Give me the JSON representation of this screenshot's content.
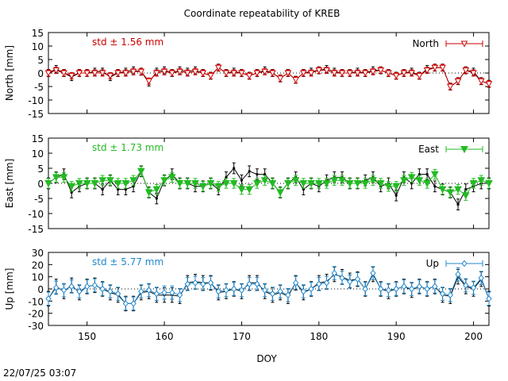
{
  "page": {
    "title": "Coordinate repeatability of KREB",
    "timestamp": "22/07/25 03:07",
    "xlabel": "DOY"
  },
  "chart_data": [
    {
      "type": "line",
      "panel": "North",
      "ylabel": "North [mm]",
      "legend": "North",
      "legend_position": "top-right",
      "std_label": "std ± 1.56 mm",
      "color": "#cc0000",
      "marker": "open-triangle-down",
      "xlim": [
        145,
        202
      ],
      "ylim": [
        -15,
        15
      ],
      "yticks": [
        -15,
        -10,
        -5,
        0,
        5,
        10,
        15
      ],
      "x": [
        145,
        146,
        147,
        148,
        149,
        150,
        151,
        152,
        153,
        154,
        155,
        156,
        157,
        158,
        159,
        160,
        161,
        162,
        163,
        164,
        165,
        166,
        167,
        168,
        169,
        170,
        171,
        172,
        173,
        174,
        175,
        176,
        177,
        178,
        179,
        180,
        181,
        182,
        183,
        184,
        185,
        186,
        187,
        188,
        189,
        190,
        191,
        192,
        193,
        194,
        195,
        196,
        197,
        198,
        199,
        200,
        201,
        202
      ],
      "series": [
        {
          "values": [
            0,
            1.5,
            0,
            -1.5,
            0,
            0,
            0.5,
            0.5,
            -1.5,
            0,
            0.5,
            1,
            0.5,
            -3.5,
            0.5,
            1,
            0,
            1,
            0.5,
            1,
            0,
            -1,
            2,
            0,
            0.5,
            0,
            -1,
            0,
            1,
            0,
            -2,
            0,
            -2.5,
            0,
            0.5,
            1,
            1.5,
            0.5,
            0,
            0,
            0.5,
            0,
            1,
            1,
            0,
            -1,
            0,
            0.5,
            -1,
            1.5,
            2,
            2,
            -5,
            -3,
            1,
            0.5,
            -3,
            -4
          ]
        },
        {
          "values": [
            0,
            1,
            0,
            -1,
            0,
            0,
            0,
            0,
            -1,
            0,
            0,
            0.5,
            0.5,
            -3,
            0,
            0.5,
            0,
            0.5,
            0,
            0.5,
            0,
            -1,
            2,
            0,
            0,
            0,
            -1,
            0,
            0.5,
            0,
            -2,
            0,
            -2.5,
            0,
            0,
            1,
            1,
            0,
            0,
            0,
            0,
            0,
            0.5,
            1,
            0,
            -1,
            0,
            0,
            -1,
            1,
            2,
            2,
            -5,
            -3,
            1,
            0,
            -3,
            -4
          ]
        }
      ],
      "error": 1.3
    },
    {
      "type": "line",
      "panel": "East",
      "ylabel": "East [mm]",
      "legend": "East",
      "legend_position": "top-right",
      "std_label": "std ± 1.73 mm",
      "color": "#22bb22",
      "marker": "filled-triangle-down",
      "xlim": [
        145,
        202
      ],
      "ylim": [
        -15,
        15
      ],
      "yticks": [
        -15,
        -10,
        -5,
        0,
        5,
        10,
        15
      ],
      "x": [
        145,
        146,
        147,
        148,
        149,
        150,
        151,
        152,
        153,
        154,
        155,
        156,
        157,
        158,
        159,
        160,
        161,
        162,
        163,
        164,
        165,
        166,
        167,
        168,
        169,
        170,
        171,
        172,
        173,
        174,
        175,
        176,
        177,
        178,
        179,
        180,
        181,
        182,
        183,
        184,
        185,
        186,
        187,
        188,
        189,
        190,
        191,
        192,
        193,
        194,
        195,
        196,
        197,
        198,
        199,
        200,
        201,
        202
      ],
      "series": [
        {
          "values": [
            0,
            2,
            3,
            -3,
            -1,
            0,
            0,
            -2,
            1,
            -2,
            -2,
            -1,
            4,
            -3,
            -5,
            1,
            3,
            0,
            0,
            -1,
            -1,
            0,
            -2,
            2,
            5,
            1,
            4,
            3,
            3,
            0,
            -3,
            0,
            2,
            -2,
            0,
            -1,
            1,
            2,
            2,
            0,
            0,
            1,
            2,
            -1,
            0,
            -4,
            2,
            0,
            3,
            3,
            -1,
            -2,
            -3,
            -7,
            -2,
            -1,
            0,
            0
          ]
        },
        {
          "values": [
            0,
            2,
            2,
            -1,
            0,
            0,
            0,
            1,
            1,
            0,
            0,
            1,
            4,
            -3,
            -2,
            1,
            2,
            0,
            0,
            0,
            -1,
            0,
            -1,
            0,
            0,
            -2,
            -2,
            0,
            1,
            0,
            -3,
            0,
            1,
            0,
            0,
            0,
            0,
            1,
            1,
            0,
            0,
            0,
            1,
            0,
            -1,
            -1,
            1,
            2,
            1,
            0,
            3,
            -2,
            -3,
            -2,
            -4,
            0,
            1,
            0
          ]
        }
      ],
      "error": 1.8
    },
    {
      "type": "line",
      "panel": "Up",
      "ylabel": "Up [mm]",
      "legend": "Up",
      "legend_position": "top-right",
      "std_label": "std ± 5.77 mm",
      "color": "#2288cc",
      "marker": "open-diamond",
      "xlim": [
        145,
        202
      ],
      "ylim": [
        -30,
        30
      ],
      "yticks": [
        -30,
        -20,
        -10,
        0,
        10,
        20,
        30
      ],
      "x": [
        145,
        146,
        147,
        148,
        149,
        150,
        151,
        152,
        153,
        154,
        155,
        156,
        157,
        158,
        159,
        160,
        161,
        162,
        163,
        164,
        165,
        166,
        167,
        168,
        169,
        170,
        171,
        172,
        173,
        174,
        175,
        176,
        177,
        178,
        179,
        180,
        181,
        182,
        183,
        184,
        185,
        186,
        187,
        188,
        189,
        190,
        191,
        192,
        193,
        194,
        195,
        196,
        197,
        198,
        199,
        200,
        201,
        202
      ],
      "series": [
        {
          "values": [
            -8,
            2,
            -2,
            3,
            -3,
            2,
            3,
            0,
            -3,
            -5,
            -12,
            -12,
            -3,
            -2,
            -5,
            -5,
            -5,
            -6,
            5,
            6,
            5,
            5,
            -3,
            -2,
            0,
            -2,
            5,
            5,
            -2,
            -5,
            -3,
            -6,
            5,
            -3,
            0,
            5,
            6,
            12,
            10,
            7,
            8,
            0,
            12,
            0,
            -2,
            0,
            2,
            -1,
            2,
            0,
            2,
            -5,
            -6,
            10,
            2,
            0,
            8,
            -8
          ]
        },
        {
          "values": [
            -8,
            1,
            -1,
            2,
            -2,
            2,
            3,
            0,
            -2,
            -4,
            -12,
            -12,
            -2,
            -1,
            -4,
            -3,
            -3,
            -5,
            4,
            5,
            4,
            5,
            -2,
            -1,
            0,
            -1,
            4,
            4,
            -1,
            -4,
            -2,
            -5,
            5,
            -2,
            0,
            4,
            5,
            13,
            9,
            6,
            8,
            0,
            13,
            0,
            -1,
            0,
            2,
            0,
            2,
            0,
            2,
            -4,
            -5,
            12,
            3,
            1,
            9,
            -8
          ]
        }
      ],
      "error": 6
    }
  ]
}
